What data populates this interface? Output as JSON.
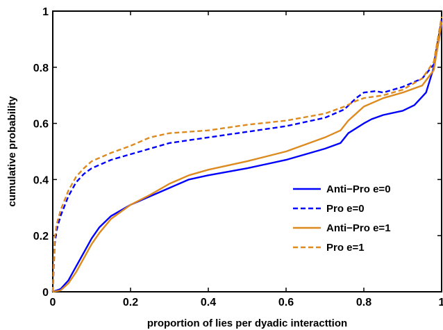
{
  "chart_data": {
    "type": "line",
    "title": "",
    "xlabel": "proportion of lies per dyadic interacttion",
    "ylabel": "cumulative probability",
    "xlim": [
      0,
      1
    ],
    "ylim": [
      0,
      1
    ],
    "xticks": [
      0,
      0.2,
      0.4,
      0.6,
      0.8,
      1
    ],
    "yticks": [
      0,
      0.2,
      0.4,
      0.6,
      0.8,
      1
    ],
    "xtick_labels": [
      "0",
      "0.2",
      "0.4",
      "0.6",
      "0.8",
      "1"
    ],
    "ytick_labels": [
      "0",
      "0.2",
      "0.4",
      "0.6",
      "0.8",
      "1"
    ],
    "grid": false,
    "legend_position": "lower-right",
    "series": [
      {
        "name": "Anti−Pro e=0",
        "color": "#0000ff",
        "dash": "solid",
        "points": [
          [
            0,
            0
          ],
          [
            0.02,
            0.01
          ],
          [
            0.04,
            0.04
          ],
          [
            0.06,
            0.09
          ],
          [
            0.08,
            0.14
          ],
          [
            0.1,
            0.19
          ],
          [
            0.12,
            0.23
          ],
          [
            0.15,
            0.27
          ],
          [
            0.2,
            0.31
          ],
          [
            0.25,
            0.34
          ],
          [
            0.3,
            0.37
          ],
          [
            0.35,
            0.4
          ],
          [
            0.4,
            0.415
          ],
          [
            0.5,
            0.44
          ],
          [
            0.6,
            0.47
          ],
          [
            0.7,
            0.51
          ],
          [
            0.74,
            0.53
          ],
          [
            0.76,
            0.565
          ],
          [
            0.8,
            0.6
          ],
          [
            0.82,
            0.615
          ],
          [
            0.85,
            0.63
          ],
          [
            0.9,
            0.645
          ],
          [
            0.93,
            0.665
          ],
          [
            0.96,
            0.71
          ],
          [
            0.98,
            0.8
          ],
          [
            1.0,
            0.95
          ]
        ]
      },
      {
        "name": "Pro e=0",
        "color": "#0000ff",
        "dash": "dashed",
        "points": [
          [
            0,
            0
          ],
          [
            0.005,
            0.17
          ],
          [
            0.01,
            0.22
          ],
          [
            0.02,
            0.27
          ],
          [
            0.04,
            0.34
          ],
          [
            0.06,
            0.39
          ],
          [
            0.08,
            0.42
          ],
          [
            0.1,
            0.44
          ],
          [
            0.15,
            0.47
          ],
          [
            0.2,
            0.49
          ],
          [
            0.25,
            0.51
          ],
          [
            0.3,
            0.53
          ],
          [
            0.4,
            0.55
          ],
          [
            0.5,
            0.57
          ],
          [
            0.6,
            0.59
          ],
          [
            0.7,
            0.62
          ],
          [
            0.75,
            0.65
          ],
          [
            0.78,
            0.69
          ],
          [
            0.8,
            0.71
          ],
          [
            0.83,
            0.715
          ],
          [
            0.85,
            0.71
          ],
          [
            0.9,
            0.73
          ],
          [
            0.95,
            0.76
          ],
          [
            0.98,
            0.81
          ],
          [
            1.0,
            0.97
          ]
        ]
      },
      {
        "name": "Anti−Pro e=1",
        "color": "#dd8a1e",
        "dash": "solid",
        "points": [
          [
            0,
            0
          ],
          [
            0.02,
            0.005
          ],
          [
            0.04,
            0.03
          ],
          [
            0.06,
            0.07
          ],
          [
            0.08,
            0.12
          ],
          [
            0.1,
            0.17
          ],
          [
            0.12,
            0.21
          ],
          [
            0.15,
            0.26
          ],
          [
            0.2,
            0.31
          ],
          [
            0.25,
            0.345
          ],
          [
            0.3,
            0.385
          ],
          [
            0.35,
            0.415
          ],
          [
            0.4,
            0.435
          ],
          [
            0.5,
            0.465
          ],
          [
            0.6,
            0.5
          ],
          [
            0.7,
            0.55
          ],
          [
            0.74,
            0.575
          ],
          [
            0.76,
            0.61
          ],
          [
            0.8,
            0.66
          ],
          [
            0.85,
            0.69
          ],
          [
            0.9,
            0.71
          ],
          [
            0.95,
            0.735
          ],
          [
            0.98,
            0.79
          ],
          [
            1.0,
            0.96
          ]
        ]
      },
      {
        "name": "Pro e=1",
        "color": "#dd8a1e",
        "dash": "dashed",
        "points": [
          [
            0,
            0
          ],
          [
            0.005,
            0.19
          ],
          [
            0.01,
            0.24
          ],
          [
            0.02,
            0.29
          ],
          [
            0.04,
            0.36
          ],
          [
            0.06,
            0.41
          ],
          [
            0.08,
            0.44
          ],
          [
            0.1,
            0.465
          ],
          [
            0.15,
            0.495
          ],
          [
            0.2,
            0.52
          ],
          [
            0.25,
            0.55
          ],
          [
            0.3,
            0.565
          ],
          [
            0.4,
            0.575
          ],
          [
            0.5,
            0.595
          ],
          [
            0.6,
            0.61
          ],
          [
            0.7,
            0.635
          ],
          [
            0.75,
            0.66
          ],
          [
            0.78,
            0.68
          ],
          [
            0.8,
            0.69
          ],
          [
            0.85,
            0.7
          ],
          [
            0.9,
            0.72
          ],
          [
            0.95,
            0.76
          ],
          [
            0.98,
            0.82
          ],
          [
            1.0,
            0.98
          ]
        ]
      }
    ]
  }
}
